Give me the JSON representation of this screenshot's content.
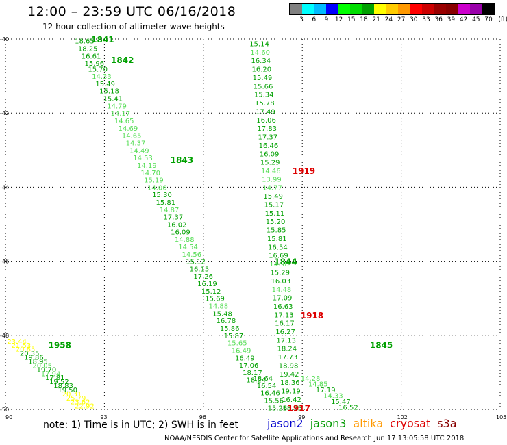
{
  "header": {
    "title": "12:00  –  23:59 UTC 06/16/2018",
    "subtitle": "12 hour collection of altimeter wave heights"
  },
  "scale": {
    "unit_label": "(ft)",
    "colors": [
      "#808080",
      "#00ffff",
      "#00bbff",
      "#0000ff",
      "#00ff00",
      "#00dd00",
      "#00a000",
      "#ffff00",
      "#ffcc00",
      "#ff9900",
      "#ff0000",
      "#cc0000",
      "#990000",
      "#880000",
      "#cc00cc",
      "#9900aa",
      "#000000"
    ],
    "labels": [
      "3",
      "6",
      "9",
      "12",
      "15",
      "18",
      "21",
      "24",
      "27",
      "30",
      "33",
      "36",
      "39",
      "42",
      "45",
      "70"
    ]
  },
  "axes": {
    "x_ticks": [
      "90",
      "93",
      "96",
      "99",
      "102",
      "105"
    ],
    "y_ticks": [
      "-40",
      "-42",
      "-44",
      "-46",
      "-48",
      "-50"
    ],
    "x_values": [
      90,
      93,
      96,
      99,
      102,
      105
    ],
    "y_values": [
      -40,
      -42,
      -44,
      -46,
      -48,
      -50
    ]
  },
  "colors": {
    "light_green": "#55dd55",
    "green": "#00a000",
    "yellow": "#ffff00",
    "red": "#dd0000",
    "jason2": "#0000cc",
    "jason3": "#009900",
    "altika": "#ff9900",
    "cryosat": "#dd0000",
    "s3a": "#880000"
  },
  "tracks": [
    {
      "name": "track-1841-1845",
      "points": [
        {
          "lon": 92.1,
          "lat": -40.05,
          "v": "18.65",
          "c": "g"
        },
        {
          "lon": 92.2,
          "lat": -40.25,
          "v": "18.25",
          "c": "g"
        },
        {
          "lon": 92.3,
          "lat": -40.45,
          "v": "16.61",
          "c": "g"
        },
        {
          "lon": 92.4,
          "lat": -40.65,
          "v": "15.96",
          "c": "g"
        },
        {
          "lon": 92.5,
          "lat": -40.8,
          "v": "15.70",
          "c": "g"
        },
        {
          "lon": 92.62,
          "lat": -41.0,
          "v": "14.33",
          "c": "l"
        },
        {
          "lon": 92.73,
          "lat": -41.2,
          "v": "15.49",
          "c": "g"
        },
        {
          "lon": 92.85,
          "lat": -41.4,
          "v": "15.18",
          "c": "g"
        },
        {
          "lon": 92.96,
          "lat": -41.6,
          "v": "15.41",
          "c": "g"
        },
        {
          "lon": 93.08,
          "lat": -41.8,
          "v": "14.79",
          "c": "l"
        },
        {
          "lon": 93.19,
          "lat": -42.0,
          "v": "14.17",
          "c": "l"
        },
        {
          "lon": 93.3,
          "lat": -42.2,
          "v": "14.65",
          "c": "l"
        },
        {
          "lon": 93.42,
          "lat": -42.4,
          "v": "14.69",
          "c": "l"
        },
        {
          "lon": 93.53,
          "lat": -42.6,
          "v": "14.65",
          "c": "l"
        },
        {
          "lon": 93.65,
          "lat": -42.8,
          "v": "14.37",
          "c": "l"
        },
        {
          "lon": 93.76,
          "lat": -43.0,
          "v": "14.49",
          "c": "l"
        },
        {
          "lon": 93.87,
          "lat": -43.2,
          "v": "14.53",
          "c": "l"
        },
        {
          "lon": 93.99,
          "lat": -43.4,
          "v": "14.19",
          "c": "l"
        },
        {
          "lon": 94.1,
          "lat": -43.6,
          "v": "14.70",
          "c": "l"
        },
        {
          "lon": 94.2,
          "lat": -43.8,
          "v": "15.19",
          "c": "l"
        },
        {
          "lon": 94.3,
          "lat": -44.0,
          "v": "14.06",
          "c": "l"
        },
        {
          "lon": 94.45,
          "lat": -44.2,
          "v": "15.30",
          "c": "g"
        },
        {
          "lon": 94.56,
          "lat": -44.4,
          "v": "15.81",
          "c": "g"
        },
        {
          "lon": 94.67,
          "lat": -44.6,
          "v": "14.87",
          "c": "l"
        },
        {
          "lon": 94.79,
          "lat": -44.8,
          "v": "17.37",
          "c": "g"
        },
        {
          "lon": 94.9,
          "lat": -45.0,
          "v": "16.02",
          "c": "g"
        },
        {
          "lon": 95.01,
          "lat": -45.2,
          "v": "16.09",
          "c": "g"
        },
        {
          "lon": 95.13,
          "lat": -45.4,
          "v": "14.88",
          "c": "l"
        },
        {
          "lon": 95.24,
          "lat": -45.6,
          "v": "14.54",
          "c": "l"
        },
        {
          "lon": 95.35,
          "lat": -45.8,
          "v": "14.56",
          "c": "l"
        },
        {
          "lon": 95.47,
          "lat": -46.0,
          "v": "15.12",
          "c": "g"
        },
        {
          "lon": 95.58,
          "lat": -46.2,
          "v": "16.15",
          "c": "g"
        },
        {
          "lon": 95.7,
          "lat": -46.4,
          "v": "17.26",
          "c": "g"
        },
        {
          "lon": 95.82,
          "lat": -46.6,
          "v": "16.19",
          "c": "g"
        },
        {
          "lon": 95.94,
          "lat": -46.8,
          "v": "15.12",
          "c": "g"
        },
        {
          "lon": 96.05,
          "lat": -47.0,
          "v": "15.69",
          "c": "g"
        },
        {
          "lon": 96.16,
          "lat": -47.2,
          "v": "14.88",
          "c": "l"
        },
        {
          "lon": 96.28,
          "lat": -47.4,
          "v": "15.48",
          "c": "g"
        },
        {
          "lon": 96.39,
          "lat": -47.6,
          "v": "16.78",
          "c": "g"
        },
        {
          "lon": 96.5,
          "lat": -47.8,
          "v": "15.86",
          "c": "g"
        },
        {
          "lon": 96.62,
          "lat": -48.0,
          "v": "15.87",
          "c": "g"
        },
        {
          "lon": 96.73,
          "lat": -48.2,
          "v": "15.65",
          "c": "l"
        },
        {
          "lon": 96.85,
          "lat": -48.4,
          "v": "16.49",
          "c": "l"
        },
        {
          "lon": 96.96,
          "lat": -48.6,
          "v": "16.49",
          "c": "g"
        },
        {
          "lon": 97.08,
          "lat": -48.8,
          "v": "17.06",
          "c": "g"
        },
        {
          "lon": 97.19,
          "lat": -49.0,
          "v": "18.17",
          "c": "g"
        },
        {
          "lon": 97.3,
          "lat": -49.2,
          "v": "18.24",
          "c": "g"
        },
        {
          "lon": 97.51,
          "lat": -49.15,
          "v": "18.64",
          "c": "g"
        },
        {
          "lon": 97.62,
          "lat": -49.35,
          "v": "16.54",
          "c": "g"
        },
        {
          "lon": 97.73,
          "lat": -49.55,
          "v": "16.46",
          "c": "g"
        },
        {
          "lon": 97.84,
          "lat": -49.75,
          "v": "15.56",
          "c": "g"
        },
        {
          "lon": 97.95,
          "lat": -49.95,
          "v": "15.26",
          "c": "g"
        }
      ]
    }
  ],
  "map": {
    "pass_labels": [
      {
        "id": "1841",
        "lon": 92.6,
        "lat": -40.0,
        "c": "g"
      },
      {
        "id": "1842",
        "lon": 93.2,
        "lat": -40.55,
        "c": "g"
      },
      {
        "id": "1843",
        "lon": 95.0,
        "lat": -43.25,
        "c": "g"
      },
      {
        "id": "1844",
        "lon": 98.15,
        "lat": -46.0,
        "c": "g"
      },
      {
        "id": "1845",
        "lon": 101.05,
        "lat": -48.25,
        "c": "g"
      },
      {
        "id": "1919",
        "lon": 98.7,
        "lat": -43.55,
        "c": "r"
      },
      {
        "id": "1918",
        "lon": 98.95,
        "lat": -47.45,
        "c": "r"
      },
      {
        "id": "1917",
        "lon": 98.55,
        "lat": -49.95,
        "c": "r"
      },
      {
        "id": "1958",
        "lon": 91.3,
        "lat": -48.25,
        "c": "g"
      }
    ],
    "track_center": [
      {
        "v": "15.14",
        "c": "g"
      },
      {
        "v": "14.60",
        "c": "l"
      },
      {
        "v": "16.34",
        "c": "g"
      },
      {
        "v": "16.20",
        "c": "g"
      },
      {
        "v": "15.49",
        "c": "g"
      },
      {
        "v": "15.66",
        "c": "g"
      },
      {
        "v": "15.34",
        "c": "g"
      },
      {
        "v": "15.78",
        "c": "g"
      },
      {
        "v": "17.49",
        "c": "g"
      },
      {
        "v": "16.06",
        "c": "g"
      },
      {
        "v": "17.83",
        "c": "g"
      },
      {
        "v": "17.37",
        "c": "g"
      },
      {
        "v": "16.46",
        "c": "g"
      },
      {
        "v": "16.09",
        "c": "g"
      },
      {
        "v": "15.29",
        "c": "g"
      },
      {
        "v": "14.46",
        "c": "l"
      },
      {
        "v": "13.99",
        "c": "l"
      },
      {
        "v": "14.77",
        "c": "l"
      },
      {
        "v": "15.49",
        "c": "g"
      },
      {
        "v": "15.17",
        "c": "g"
      },
      {
        "v": "15.11",
        "c": "g"
      },
      {
        "v": "15.20",
        "c": "g"
      },
      {
        "v": "15.85",
        "c": "g"
      },
      {
        "v": "15.81",
        "c": "g"
      },
      {
        "v": "16.54",
        "c": "g"
      },
      {
        "v": "16.69",
        "c": "g"
      },
      {
        "v": "14.98",
        "c": "l"
      },
      {
        "v": "15.29",
        "c": "g"
      },
      {
        "v": "16.03",
        "c": "g"
      },
      {
        "v": "14.48",
        "c": "l"
      },
      {
        "v": "17.09",
        "c": "g"
      },
      {
        "v": "16.63",
        "c": "g"
      },
      {
        "v": "17.13",
        "c": "g"
      },
      {
        "v": "16.17",
        "c": "g"
      },
      {
        "v": "16.27",
        "c": "g"
      },
      {
        "v": "17.13",
        "c": "g"
      },
      {
        "v": "18.24",
        "c": "g"
      },
      {
        "v": "17.73",
        "c": "g"
      },
      {
        "v": "18.98",
        "c": "g"
      },
      {
        "v": "19.42",
        "c": "g"
      },
      {
        "v": "18.36",
        "c": "g"
      },
      {
        "v": "19.19",
        "c": "g"
      },
      {
        "v": "16.42",
        "c": "g"
      },
      {
        "v": "18.75",
        "c": "g"
      }
    ],
    "track_right": [
      {
        "v": "14.28",
        "c": "l"
      },
      {
        "v": "14.85",
        "c": "l"
      },
      {
        "v": "17.19",
        "c": "g"
      },
      {
        "v": "14.33",
        "c": "l"
      },
      {
        "v": "15.47",
        "c": "g"
      },
      {
        "v": "16.52",
        "c": "g"
      }
    ],
    "track_sw": [
      {
        "v": "23.44",
        "c": "y"
      },
      {
        "v": "21.53",
        "c": "y"
      },
      {
        "v": "20.85",
        "c": "y"
      },
      {
        "v": "20.35",
        "c": "g"
      },
      {
        "v": "19.86",
        "c": "g"
      },
      {
        "v": "18.95",
        "c": "g"
      },
      {
        "v": "20.05",
        "c": "l"
      },
      {
        "v": "19.70",
        "c": "g"
      },
      {
        "v": "17.94",
        "c": "l"
      },
      {
        "v": "17.81",
        "c": "g"
      },
      {
        "v": "19.52",
        "c": "g"
      },
      {
        "v": "18.83",
        "c": "g"
      },
      {
        "v": "19.50",
        "c": "g"
      },
      {
        "v": "20.31",
        "c": "y"
      },
      {
        "v": "25.79",
        "c": "y"
      },
      {
        "v": "23.62",
        "c": "y"
      },
      {
        "v": "22.92",
        "c": "y"
      }
    ]
  },
  "footer": {
    "note": "note:  1) Time is in UTC;  2) SWH is in feet",
    "legend": [
      {
        "label": "jason2",
        "key": "jason2"
      },
      {
        "label": "jason3",
        "key": "jason3"
      },
      {
        "label": "altika",
        "key": "altika"
      },
      {
        "label": "cryosat",
        "key": "cryosat"
      },
      {
        "label": "s3a",
        "key": "s3a"
      }
    ],
    "credit": "NOAA/NESDIS Center for Satellite Applications and Research    Jun 17 13:05:58 UTC 2018"
  }
}
